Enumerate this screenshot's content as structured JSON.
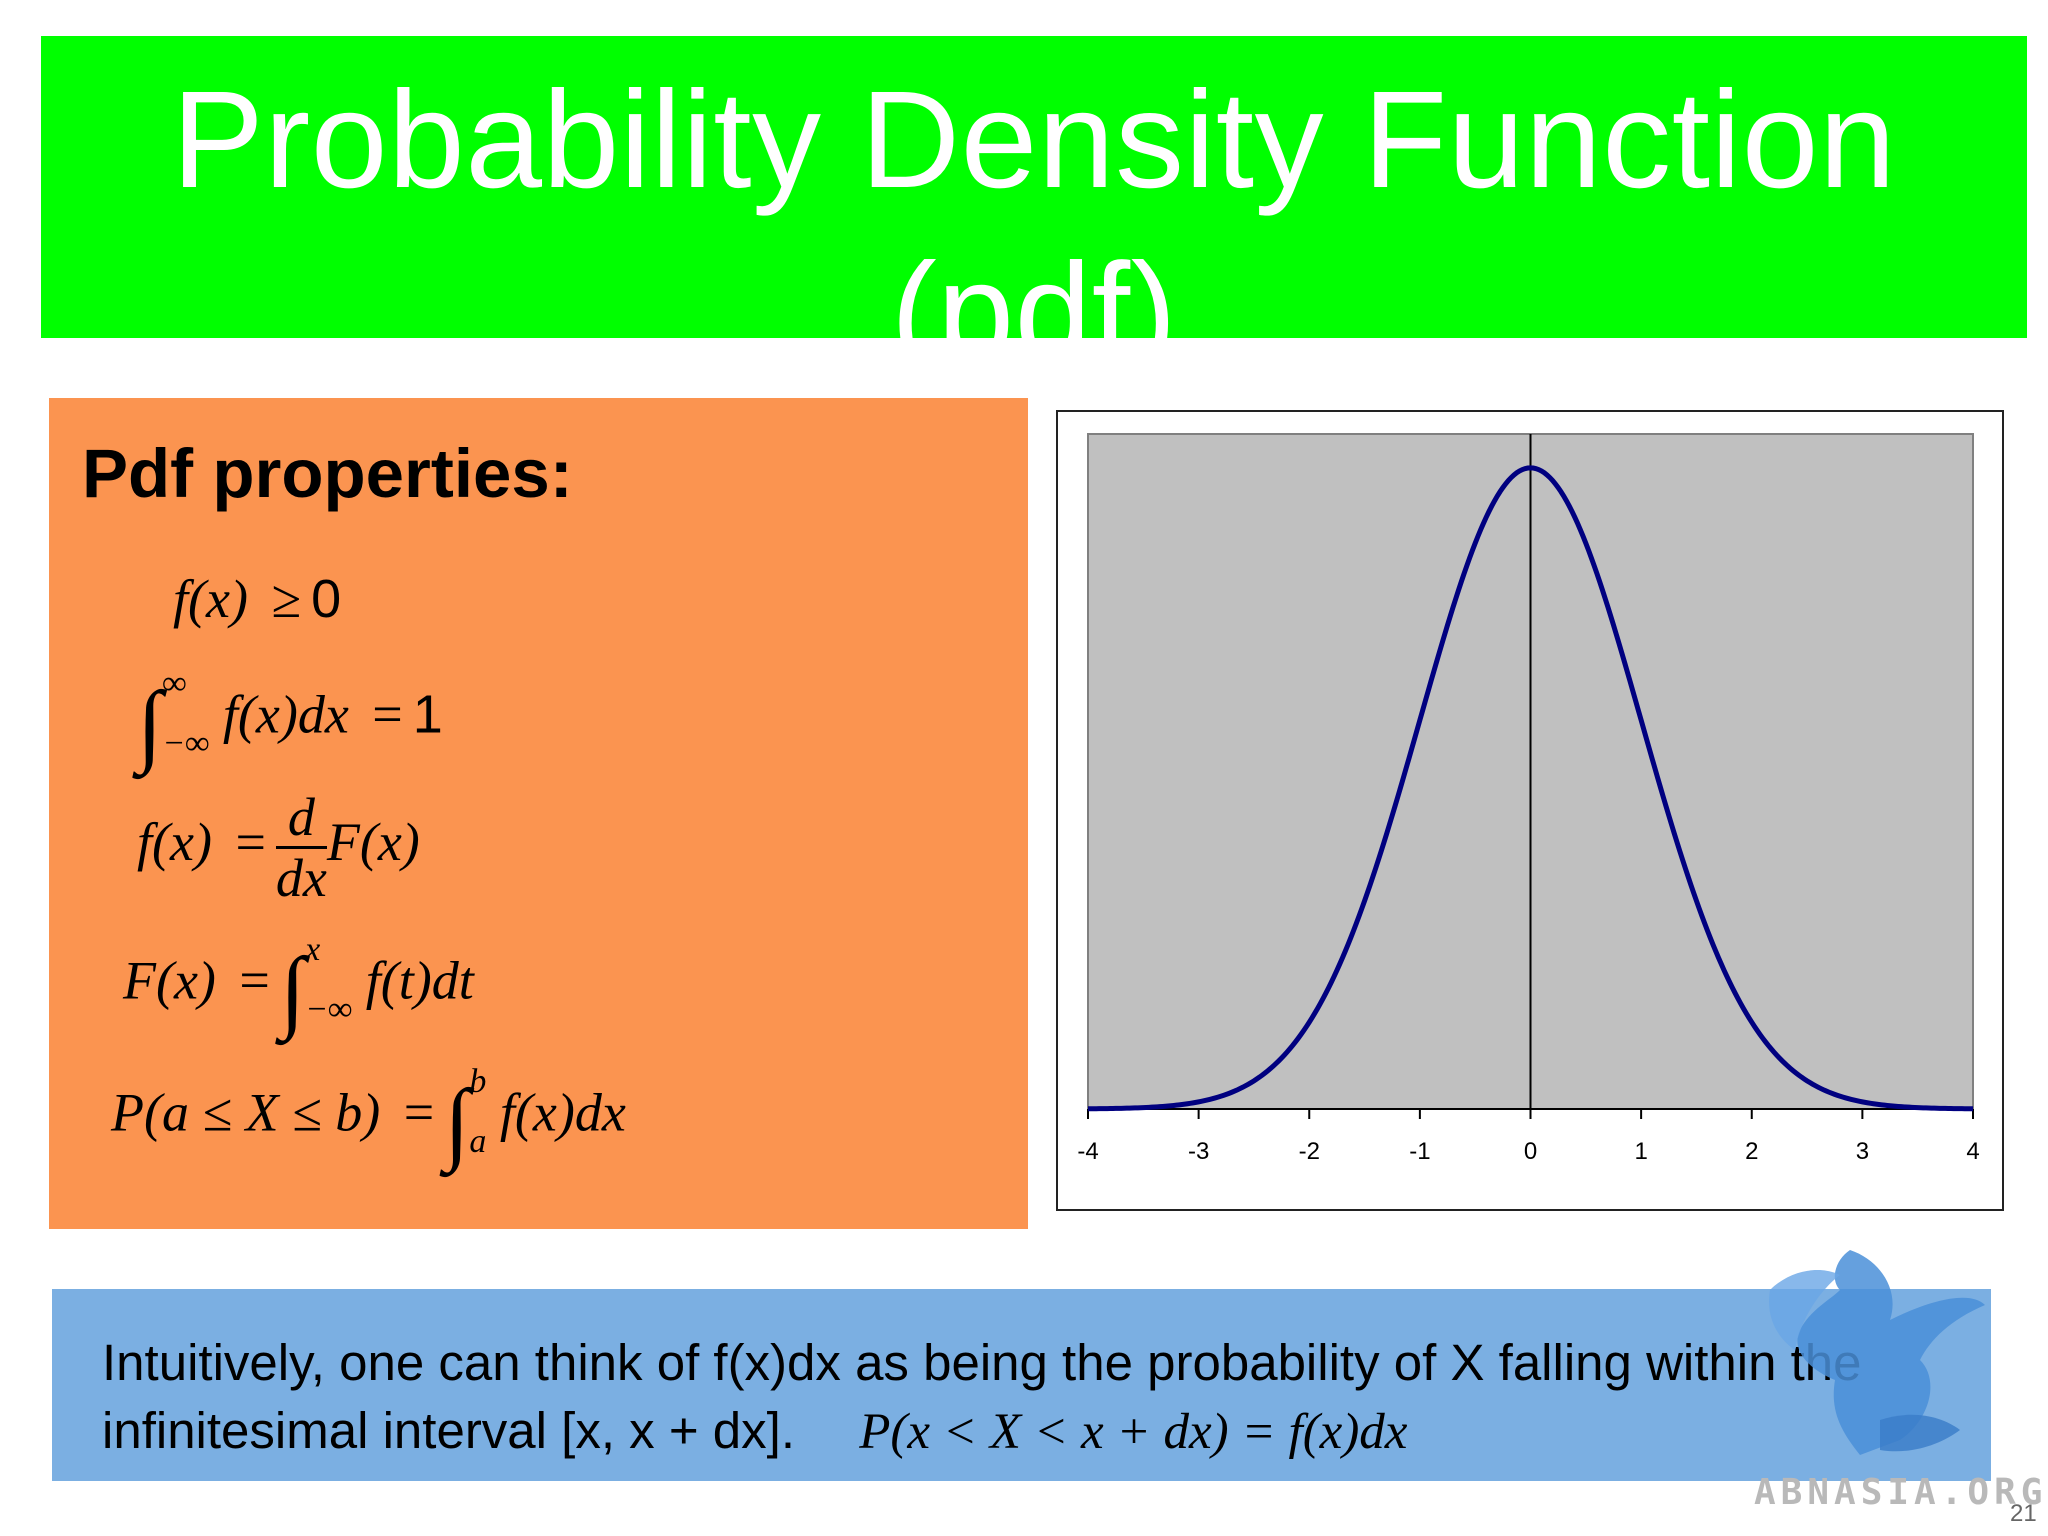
{
  "slide": {
    "title_line1": "Probability Density Function",
    "title_line2": "(pdf)",
    "page_number": "21",
    "logo_text": "ABNASIA.ORG"
  },
  "properties": {
    "heading": "Pdf properties:",
    "f1_rhs": "0",
    "f2_rhs": "1"
  },
  "note": {
    "text": "Intuitively, one can think of f(x)dx as being the probability of X falling within the infinitesimal interval [x, x + dx].",
    "formula": "P(x < X < x + dx) = f(x)dx"
  },
  "colors": {
    "title_bg": "#00ff00",
    "props_bg": "#fb9450",
    "note_bg": "#7bafe2",
    "plot_area": "#c0c0c0",
    "curve": "#000080"
  },
  "chart_data": {
    "type": "line",
    "title": "",
    "xlabel": "",
    "ylabel": "",
    "xlim": [
      -4,
      4
    ],
    "ticks": [
      "-4",
      "-3",
      "-2",
      "-1",
      "0",
      "1",
      "2",
      "3",
      "4"
    ],
    "series": [
      {
        "x": [
          -4,
          -3.5,
          -3,
          -2.5,
          -2,
          -1.5,
          -1,
          -0.5,
          0,
          0.5,
          1,
          1.5,
          2,
          2.5,
          3,
          3.5,
          4
        ],
        "y": [
          0.0001,
          0.0009,
          0.0044,
          0.0175,
          0.054,
          0.1295,
          0.242,
          0.3521,
          0.3989,
          0.3521,
          0.242,
          0.1295,
          0.054,
          0.0175,
          0.0044,
          0.0009,
          0.0001
        ]
      }
    ],
    "grid": false,
    "legend": "none"
  }
}
